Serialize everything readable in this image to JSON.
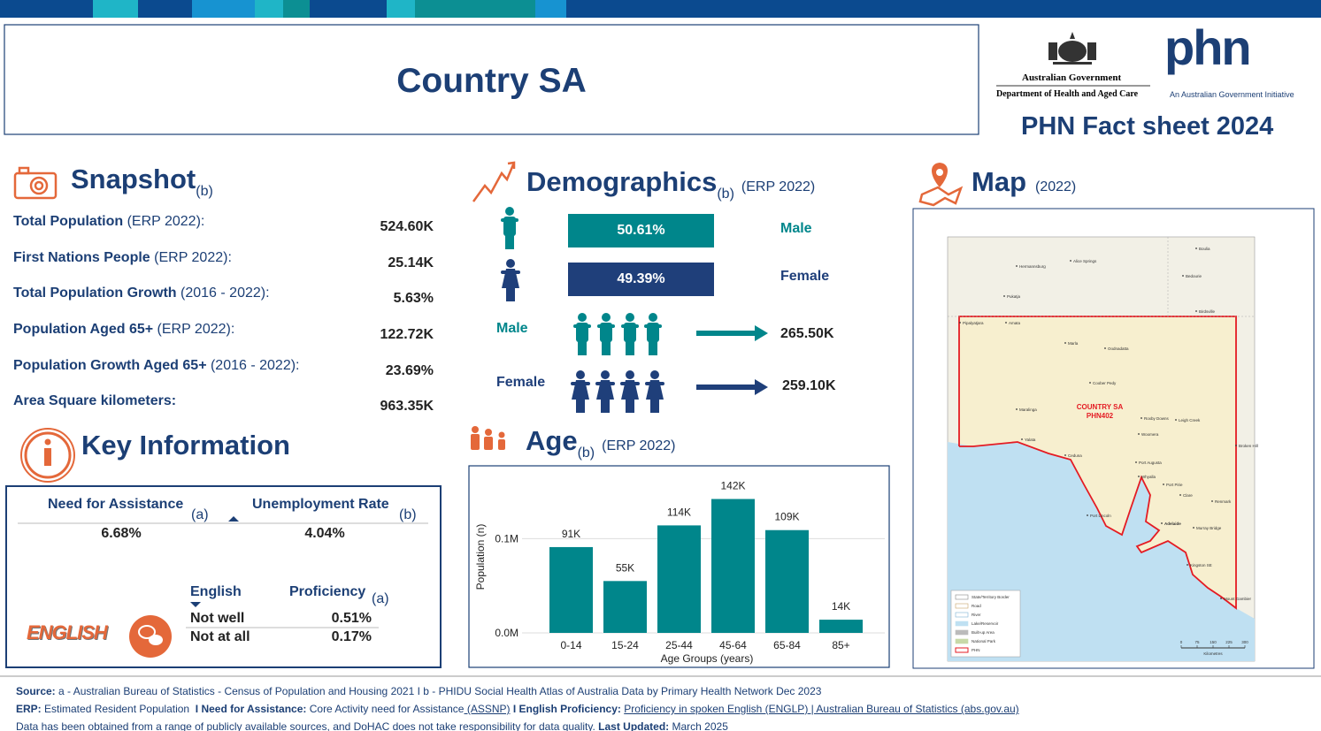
{
  "header": {
    "title": "Country SA",
    "gov_name": "Australian Government",
    "department": "Department of Health and Aged Care",
    "phn_logo": "phn",
    "phn_tagline": "An Australian Government Initiative",
    "factsheet": "PHN Fact sheet 2024"
  },
  "snapshot": {
    "heading": "Snapshot",
    "heading_note": "(b)",
    "rows": [
      {
        "label": "Total Population",
        "qualifier": " (ERP 2022):",
        "value": "524.60K"
      },
      {
        "label": "First Nations People",
        "qualifier": " (ERP 2022):",
        "value": "25.14K"
      },
      {
        "label": "Total Population Growth",
        "qualifier": " (2016 - 2022):",
        "value": "5.63%"
      },
      {
        "label": "Population Aged 65+",
        "qualifier": " (ERP 2022):",
        "value": "122.72K"
      },
      {
        "label": "Population Growth Aged 65+",
        "qualifier": " (2016 - 2022):",
        "value": "23.69%"
      },
      {
        "label": "Area Square kilometers:",
        "value": "963.35K"
      }
    ]
  },
  "demographics": {
    "heading": "Demographics",
    "heading_note": "(b)",
    "qualifier": "(ERP 2022)",
    "male_pct": "50.61%",
    "male_label": "Male",
    "female_pct": "49.39%",
    "female_label": "Female",
    "male_count_label": "Male",
    "male_count": "265.50K",
    "female_count_label": "Female",
    "female_count": "259.10K"
  },
  "age": {
    "heading": "Age",
    "heading_note": "(b)",
    "qualifier": "(ERP 2022)",
    "chart": {
      "type": "bar",
      "y_label": "Population (n)",
      "x_label": "Age Groups (years)",
      "categories": [
        "0-14",
        "15-24",
        "25-44",
        "45-64",
        "65-84",
        "85+"
      ],
      "values": [
        91000,
        55000,
        114000,
        142000,
        109000,
        14000
      ],
      "value_labels": [
        "91K",
        "55K",
        "114K",
        "142K",
        "109K",
        "14K"
      ],
      "color": "#00868b",
      "ylim": [
        0,
        165000
      ],
      "yticks": [
        {
          "value": 0,
          "label": "0.0M"
        },
        {
          "value": 100000,
          "label": "0.1M"
        }
      ],
      "grid": true
    }
  },
  "map": {
    "heading": "Map",
    "qualifier": "(2022)",
    "region": "COUNTRY SA",
    "code": "PHN402",
    "places": [
      "Alice Springs",
      "Hermannsburg",
      "Pukatja",
      "Amata",
      "Pipalyatjara",
      "Marla",
      "Oodnadatta",
      "Coober Pedy",
      "Roxby Downs",
      "Woomera",
      "Leigh Creek",
      "Maralinga",
      "Yalata",
      "Ceduna",
      "Port Augusta",
      "Whyalla",
      "Port Pirie",
      "Clare",
      "Port Lincoln",
      "Adelaide",
      "Murray Bridge",
      "Kingston SE",
      "Mount Gambier",
      "Renmark",
      "Broken Hill",
      "Boulia",
      "Bedourie",
      "Birdsville"
    ],
    "legend": [
      "State/Territory Border",
      "Road",
      "River",
      "Lake/Reservoir",
      "Built-up Area",
      "National Park",
      "PHN"
    ],
    "scale": [
      "0",
      "75",
      "150",
      "225",
      "300"
    ],
    "scale_unit": "Kilometres"
  },
  "key_info": {
    "heading": "Key Information",
    "need_label": "Need for Assistance",
    "need_note": "(a)",
    "unemp_label": "Unemployment Rate",
    "unemp_note": "(b)",
    "need_value": "6.68%",
    "unemp_value": "4.04%",
    "english_col": "English",
    "proficiency_col": "Proficiency",
    "proficiency_note": "(a)",
    "rows": [
      {
        "label": "Not well",
        "value": "0.51%"
      },
      {
        "label": "Not at all",
        "value": "0.17%"
      }
    ],
    "badge": "ENGLISH"
  },
  "footer": {
    "lines": [
      [
        {
          "text": "Source:",
          "style": "bold"
        },
        {
          "text": " a - Australian Bureau of Statistics - Census of Population and Housing 2021 I b - PHIDU Social Health Atlas of Australia Data by Primary Health Network Dec 2023",
          "style": "normal"
        }
      ],
      [
        {
          "text": "ERP:",
          "style": "bold"
        },
        {
          "text": " Estimated Resident Population  ",
          "style": "normal"
        },
        {
          "text": "I Need for Assistance:",
          "style": "bold"
        },
        {
          "text": " Core Activity need for Assistance",
          "style": "normal"
        },
        {
          "text": " (ASSNP)",
          "style": "link"
        },
        {
          "text": " I English Proficiency:",
          "style": "bold"
        },
        {
          "text": " ",
          "style": "normal"
        },
        {
          "text": "Proficiency in spoken English (ENGLP) | Australian Bureau of Statistics (abs.gov.au)",
          "style": "link"
        }
      ],
      [
        {
          "text": "Data has been obtained from a range of publicly available sources, and DoHAC does not take responsibility for data quality.",
          "style": "normal"
        },
        {
          "text": " Last Updated:",
          "style": "bold"
        },
        {
          "text": " March 2025",
          "style": "normal"
        }
      ]
    ]
  }
}
